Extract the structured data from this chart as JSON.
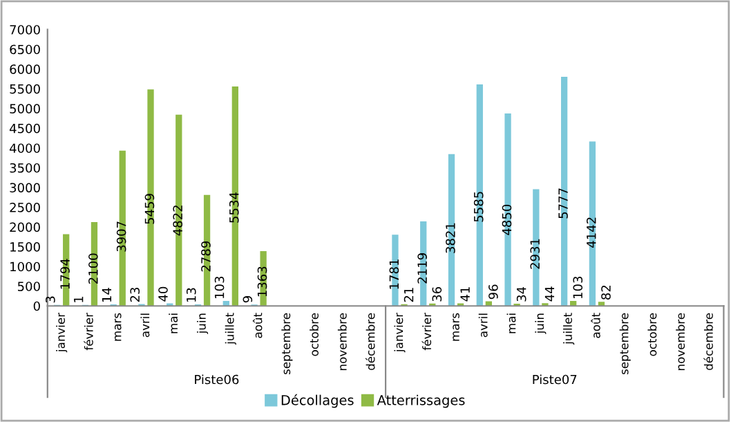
{
  "chart_data": {
    "type": "bar",
    "categories": [
      "janvier",
      "février",
      "mars",
      "avril",
      "mai",
      "juin",
      "juillet",
      "août",
      "septembre",
      "octobre",
      "novembre",
      "décembre",
      "janvier",
      "février",
      "mars",
      "avril",
      "mai",
      "juin",
      "juillet",
      "août",
      "septembre",
      "octobre",
      "novembre",
      "décembre"
    ],
    "series": [
      {
        "name": "Décollages",
        "color": "#7cc8da",
        "values": [
          3,
          1,
          14,
          23,
          40,
          13,
          103,
          9,
          null,
          null,
          null,
          null,
          1781,
          2119,
          3821,
          5585,
          4850,
          2931,
          5777,
          4142,
          null,
          null,
          null,
          null
        ]
      },
      {
        "name": "Atterrissages",
        "color": "#8fba45",
        "values": [
          1794,
          2100,
          3907,
          5459,
          4822,
          2789,
          5534,
          1363,
          null,
          null,
          null,
          null,
          21,
          36,
          41,
          96,
          34,
          44,
          103,
          82,
          null,
          null,
          null,
          null
        ]
      }
    ],
    "annotations": [
      "Piste06",
      "Piste07"
    ],
    "ylim": [
      0,
      7000
    ],
    "yticks": [
      0,
      500,
      1000,
      1500,
      2000,
      2500,
      3000,
      3500,
      4000,
      4500,
      5000,
      5500,
      6000,
      6500,
      7000
    ],
    "data_labels": true,
    "grid": false,
    "legend": "bottom"
  }
}
